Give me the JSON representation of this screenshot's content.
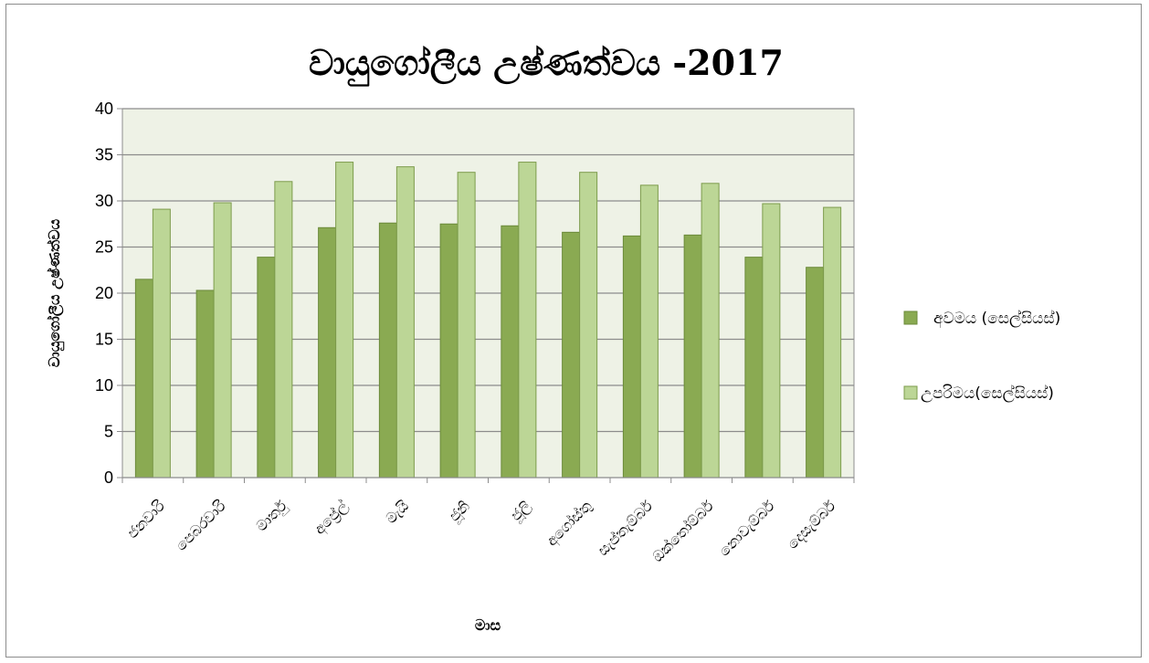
{
  "chart_data": {
    "type": "bar",
    "title": "වායුගෝලීය උෂ්ණත්වය -2017",
    "xlabel": "මාස",
    "ylabel": "වායුගෝලීය උෂ්ණත්වය",
    "categories": [
      "ජනවාරි",
      "පෙබරවාරි",
      "මාර්තු",
      "අප්‍රේල්",
      "මැයි",
      "ජූනි",
      "ජූලි",
      "අගෝස්තු",
      "සැප්තැම්බර්",
      "ඔක්තෝම්බර්",
      "නොවැම්බර්",
      "දෙසැම්බර්"
    ],
    "series": [
      {
        "name": "අවමය (සෙල්සියස්)",
        "values": [
          21.5,
          20.3,
          23.9,
          27.1,
          27.6,
          27.5,
          27.3,
          26.6,
          26.2,
          26.3,
          23.9,
          22.8
        ],
        "color": "#8aaa52",
        "stroke": "#6b8a3a"
      },
      {
        "name": "උපරිමය(සෙල්සියස්)",
        "values": [
          29.1,
          29.8,
          32.1,
          34.2,
          33.7,
          33.1,
          34.2,
          33.1,
          31.7,
          31.9,
          29.7,
          29.3
        ],
        "color": "#bcd696",
        "stroke": "#7d9c4c"
      }
    ],
    "ylim": [
      0,
      40
    ],
    "yticks": [
      0,
      5,
      10,
      15,
      20,
      25,
      30,
      35,
      40
    ],
    "grid": true,
    "legend_position": "right",
    "plot_background": "#eef2e6"
  }
}
